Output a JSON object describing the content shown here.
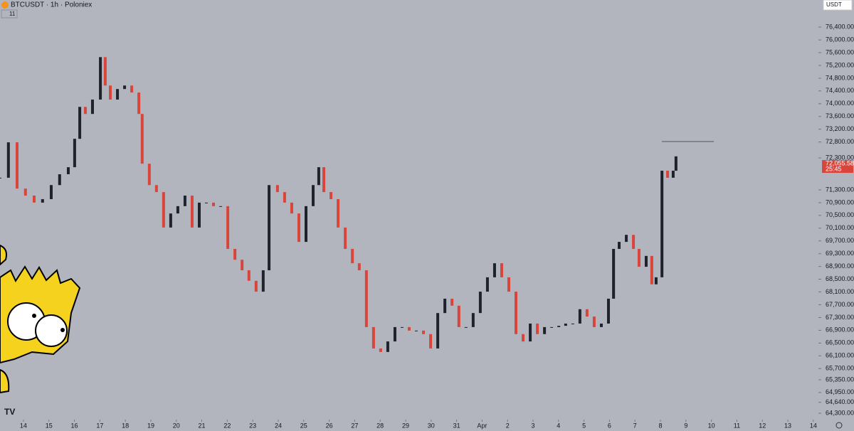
{
  "header": {
    "symbol": "BTCUSDT · 1h · Poloniex",
    "indicator_count": "11",
    "currency": "USDT"
  },
  "chart_data": {
    "type": "candlestick",
    "x": [
      -0.92,
      -0.59,
      -0.25,
      0.08,
      0.42,
      0.75,
      1.09,
      1.42,
      1.76,
      2.01,
      2.21,
      2.43,
      2.71,
      3.02,
      3.21,
      3.41,
      3.69,
      3.97,
      4.25,
      4.53,
      4.66,
      4.94,
      5.22,
      5.5,
      5.78,
      6.06,
      6.34,
      6.62,
      6.9,
      7.18,
      7.46,
      7.74,
      8.02,
      8.3,
      8.58,
      8.85,
      9.13,
      9.41,
      9.64,
      9.97,
      10.25,
      10.53,
      10.81,
      11.09,
      11.37,
      11.59,
      11.79,
      12.07,
      12.35,
      12.63,
      12.91,
      13.18,
      13.46,
      13.74,
      14.02,
      14.3,
      14.58,
      14.86,
      15.14,
      15.42,
      15.7,
      15.98,
      16.26,
      16.54,
      16.82,
      17.09,
      17.37,
      17.65,
      17.93,
      18.21,
      18.49,
      18.77,
      19.05,
      19.33,
      19.61,
      19.89,
      20.17,
      20.45,
      20.73,
      21.01,
      21.28,
      21.56,
      21.84,
      22.12,
      22.4,
      22.68,
      22.96,
      23.16,
      23.38,
      23.66,
      23.94,
      24.16,
      24.44,
      24.66,
      24.83,
      25.06,
      25.28,
      25.5,
      25.61
    ],
    "values": [
      71680,
      72790,
      71340,
      71120,
      70900,
      71010,
      71450,
      71790,
      72010,
      72900,
      73900,
      73680,
      74130,
      75460,
      74570,
      74130,
      74460,
      74570,
      74350,
      73680,
      72120,
      71450,
      71230,
      70120,
      70560,
      70790,
      71120,
      70120,
      70900,
      70900,
      70790,
      70790,
      69450,
      69110,
      68780,
      68450,
      68110,
      68780,
      71450,
      71230,
      70900,
      70560,
      69670,
      70790,
      71450,
      72010,
      71230,
      71010,
      70120,
      69450,
      69000,
      68780,
      67000,
      66330,
      66220,
      66550,
      67000,
      67000,
      66890,
      66890,
      66780,
      66330,
      67440,
      67890,
      67670,
      67000,
      67000,
      67440,
      68110,
      68560,
      69000,
      68560,
      68110,
      66780,
      66550,
      67110,
      66780,
      67000,
      67000,
      67040,
      67110,
      67110,
      67560,
      67330,
      67000,
      67110,
      67890,
      69450,
      69670,
      69890,
      69450,
      68890,
      69230,
      68340,
      68560,
      71900,
      71680,
      71900,
      72350
    ],
    "up_color": "#1e222d",
    "down_color": "#d9453b",
    "xlim": [
      -0.92,
      31.2
    ],
    "xticks": [
      {
        "value": 0,
        "label": "14"
      },
      {
        "value": 1,
        "label": "15"
      },
      {
        "value": 2,
        "label": "16"
      },
      {
        "value": 3,
        "label": "17"
      },
      {
        "value": 4,
        "label": "18"
      },
      {
        "value": 5,
        "label": "19"
      },
      {
        "value": 6,
        "label": "20"
      },
      {
        "value": 7,
        "label": "21"
      },
      {
        "value": 8,
        "label": "22"
      },
      {
        "value": 9,
        "label": "23"
      },
      {
        "value": 10,
        "label": "24"
      },
      {
        "value": 11,
        "label": "25"
      },
      {
        "value": 12,
        "label": "26"
      },
      {
        "value": 13,
        "label": "27"
      },
      {
        "value": 14,
        "label": "28"
      },
      {
        "value": 15,
        "label": "29"
      },
      {
        "value": 16,
        "label": "30"
      },
      {
        "value": 17,
        "label": "31"
      },
      {
        "value": 18,
        "label": "Apr"
      },
      {
        "value": 19,
        "label": "2"
      },
      {
        "value": 20,
        "label": "3"
      },
      {
        "value": 21,
        "label": "4"
      },
      {
        "value": 22,
        "label": "5"
      },
      {
        "value": 23,
        "label": "6"
      },
      {
        "value": 24,
        "label": "7"
      },
      {
        "value": 25,
        "label": "8"
      },
      {
        "value": 26,
        "label": "9"
      },
      {
        "value": 27,
        "label": "10"
      },
      {
        "value": 28,
        "label": "11"
      },
      {
        "value": 29,
        "label": "12"
      },
      {
        "value": 30,
        "label": "13"
      },
      {
        "value": 31,
        "label": "14"
      }
    ],
    "ylim": [
      64100,
      77250
    ],
    "yticks": [
      {
        "value": 76400,
        "label": "76,400.00"
      },
      {
        "value": 76000,
        "label": "76,000.00"
      },
      {
        "value": 75600,
        "label": "75,600.00"
      },
      {
        "value": 75200,
        "label": "75,200.00"
      },
      {
        "value": 74800,
        "label": "74,800.00"
      },
      {
        "value": 74400,
        "label": "74,400.00"
      },
      {
        "value": 74000,
        "label": "74,000.00"
      },
      {
        "value": 73600,
        "label": "73,600.00"
      },
      {
        "value": 73200,
        "label": "73,200.00"
      },
      {
        "value": 72800,
        "label": "72,800.00"
      },
      {
        "value": 72300,
        "label": "72,300.00"
      },
      {
        "value": 71300,
        "label": "71,300.00"
      },
      {
        "value": 70900,
        "label": "70,900.00"
      },
      {
        "value": 70500,
        "label": "70,500.00"
      },
      {
        "value": 70100,
        "label": "70,100.00"
      },
      {
        "value": 69700,
        "label": "69,700.00"
      },
      {
        "value": 69300,
        "label": "69,300.00"
      },
      {
        "value": 68900,
        "label": "68,900.00"
      },
      {
        "value": 68500,
        "label": "68,500.00"
      },
      {
        "value": 68100,
        "label": "68,100.00"
      },
      {
        "value": 67700,
        "label": "67,700.00"
      },
      {
        "value": 67300,
        "label": "67,300.00"
      },
      {
        "value": 66900,
        "label": "66,900.00"
      },
      {
        "value": 66500,
        "label": "66,500.00"
      },
      {
        "value": 66100,
        "label": "66,100.00"
      },
      {
        "value": 65700,
        "label": "65,700.00"
      },
      {
        "value": 65350,
        "label": "65,350.00"
      },
      {
        "value": 64950,
        "label": "64,950.00"
      },
      {
        "value": 64640,
        "label": "64,640.00"
      },
      {
        "value": 64300,
        "label": "64,300.00"
      }
    ],
    "last_price": {
      "value": 72055.58,
      "label": "72,055.58"
    },
    "countdown": "25:45"
  }
}
